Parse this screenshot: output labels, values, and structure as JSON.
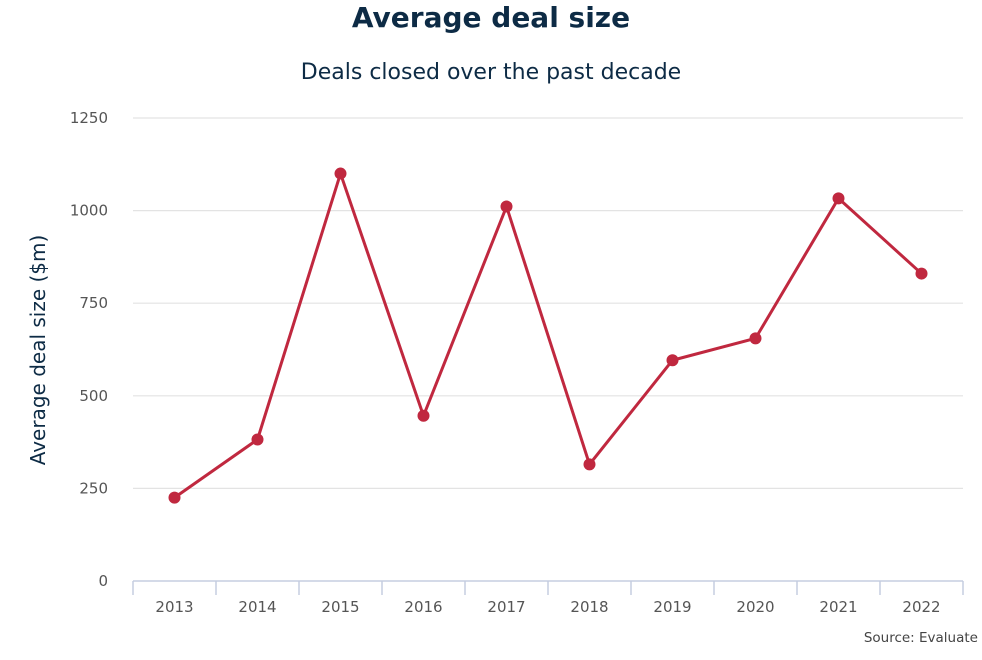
{
  "chart_data": {
    "type": "line",
    "title": "Average deal size",
    "subtitle": "Deals closed over the past decade",
    "xlabel": "",
    "ylabel": "Average deal size ($m)",
    "categories": [
      "2013",
      "2014",
      "2015",
      "2016",
      "2017",
      "2018",
      "2019",
      "2020",
      "2021",
      "2022"
    ],
    "series": [
      {
        "values": [
          225,
          382,
          1100,
          446,
          1011,
          315,
          596,
          655,
          1033,
          830
        ]
      }
    ],
    "ylim": [
      0,
      1250
    ],
    "yticks": [
      0,
      250,
      500,
      750,
      1000,
      1250
    ],
    "grid": true,
    "line_color": "#c0283f",
    "source": "Source: Evaluate"
  }
}
